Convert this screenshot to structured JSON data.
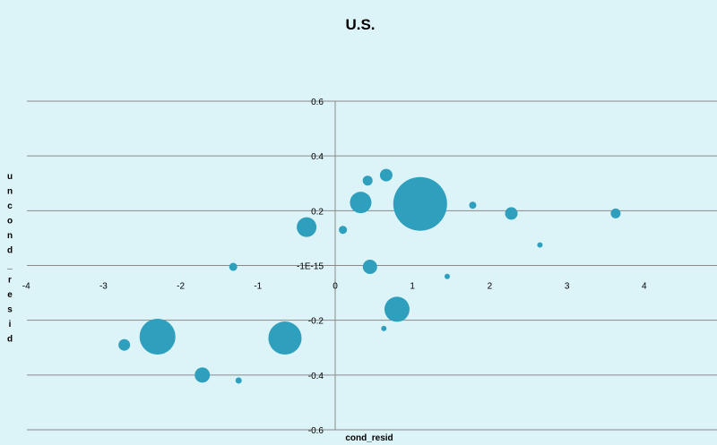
{
  "chart_data": {
    "type": "scatter",
    "title": "U.S.",
    "xlabel": "cond_resid",
    "ylabel": "uncond_resid",
    "xlim": [
      -4,
      5
    ],
    "ylim": [
      -0.6,
      0.6
    ],
    "x_ticks": [
      -4,
      -3,
      -2,
      -1,
      0,
      1,
      2,
      3,
      4
    ],
    "y_ticks": [
      {
        "value": 0.6,
        "label": "0.6"
      },
      {
        "value": 0.4,
        "label": "0.4"
      },
      {
        "value": 0.2,
        "label": "0.2"
      },
      {
        "value": 0.0,
        "label": "-1E-15"
      },
      {
        "value": -0.2,
        "label": "-0.2"
      },
      {
        "value": -0.4,
        "label": "-0.4"
      },
      {
        "value": -0.6,
        "label": "-0.6"
      }
    ],
    "grid": "horizontal",
    "legend": "none",
    "colors": {
      "point": "#2e9fbd",
      "background": "#dcf3f8",
      "grid": "#8a8a8a"
    },
    "points": [
      {
        "x": 1.1,
        "y": 0.225,
        "size": 60
      },
      {
        "x": -2.3,
        "y": -0.26,
        "size": 40
      },
      {
        "x": -0.65,
        "y": -0.265,
        "size": 37
      },
      {
        "x": 0.8,
        "y": -0.16,
        "size": 28
      },
      {
        "x": 0.33,
        "y": 0.23,
        "size": 24
      },
      {
        "x": -0.37,
        "y": 0.14,
        "size": 22
      },
      {
        "x": 0.45,
        "y": -0.005,
        "size": 16
      },
      {
        "x": -1.72,
        "y": -0.4,
        "size": 17
      },
      {
        "x": 2.28,
        "y": 0.19,
        "size": 14
      },
      {
        "x": 0.66,
        "y": 0.33,
        "size": 14
      },
      {
        "x": -2.73,
        "y": -0.29,
        "size": 13
      },
      {
        "x": 3.63,
        "y": 0.19,
        "size": 11
      },
      {
        "x": 0.42,
        "y": 0.31,
        "size": 11
      },
      {
        "x": -1.32,
        "y": -0.005,
        "size": 9
      },
      {
        "x": 0.1,
        "y": 0.13,
        "size": 9
      },
      {
        "x": 1.78,
        "y": 0.22,
        "size": 8
      },
      {
        "x": -1.25,
        "y": -0.42,
        "size": 7
      },
      {
        "x": 1.45,
        "y": -0.04,
        "size": 6
      },
      {
        "x": 2.65,
        "y": 0.075,
        "size": 6
      },
      {
        "x": 0.63,
        "y": -0.23,
        "size": 6
      }
    ]
  }
}
